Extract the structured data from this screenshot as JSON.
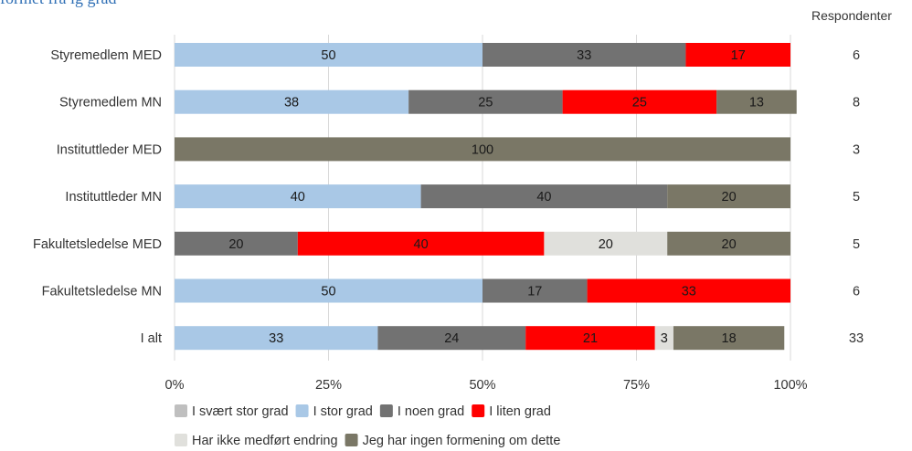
{
  "chart_data": {
    "type": "bar",
    "orientation": "horizontal",
    "stacked": true,
    "title_fragment": "formet fra ig grad",
    "responses_header": "Respondenter",
    "categories": [
      "Styremedlem MED",
      "Styremedlem MN",
      "Instituttleder MED",
      "Instituttleder MN",
      "Fakultetsledelse MED",
      "Fakultetsledelse MN",
      "I alt"
    ],
    "respondents": [
      "6",
      "8",
      "3",
      "5",
      "5",
      "6",
      "33"
    ],
    "series": [
      {
        "name": "I svært stor grad",
        "color": "#bfbfbf",
        "values": [
          0,
          0,
          0,
          0,
          0,
          0,
          0
        ]
      },
      {
        "name": "I stor grad",
        "color": "#a9c8e6",
        "values": [
          50,
          38,
          0,
          40,
          0,
          50,
          33
        ]
      },
      {
        "name": "I noen grad",
        "color": "#727272",
        "values": [
          33,
          25,
          0,
          40,
          20,
          17,
          24
        ]
      },
      {
        "name": "I liten grad",
        "color": "#ff0000",
        "values": [
          17,
          25,
          0,
          0,
          40,
          33,
          21
        ]
      },
      {
        "name": "Har ikke medført endring",
        "color": "#e0e0dc",
        "values": [
          0,
          0,
          0,
          0,
          20,
          0,
          3
        ]
      },
      {
        "name": "Jeg har ingen formening om dette",
        "color": "#7a7766",
        "values": [
          0,
          13,
          100,
          20,
          20,
          0,
          18
        ]
      }
    ],
    "xlim": [
      0,
      100
    ],
    "x_ticks": [
      "0%",
      "25%",
      "50%",
      "75%",
      "100%"
    ],
    "grid": "vertical gridlines",
    "legend_position": "bottom"
  }
}
